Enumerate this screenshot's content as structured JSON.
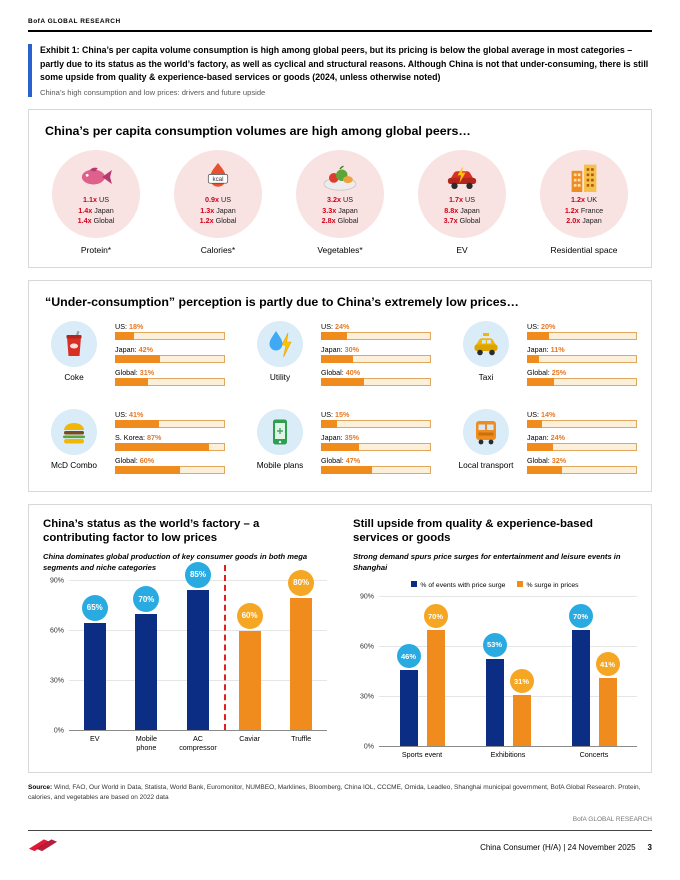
{
  "brand": {
    "top": "BofA GLOBAL RESEARCH",
    "bottom": "BofA GLOBAL RESEARCH"
  },
  "exhibit": {
    "title": "Exhibit 1: China’s per capita volume consumption is high among global peers, but its pricing is below the global average in most categories – partly due to its status as the world’s factory, as well as cyclical and structural reasons. Although China is not that under-consuming, there is still some upside from quality & experience-based services or goods (2024, unless otherwise noted)",
    "subtitle": "China’s high consumption and low prices: drivers and future upside"
  },
  "volumes": {
    "title": "China’s per capita consumption volumes are high among global peers…",
    "items": [
      {
        "icon": "fish-icon",
        "label": "Protein*",
        "stats": [
          {
            "value": "1.1x",
            "country": "US"
          },
          {
            "value": "1.4x",
            "country": "Japan"
          },
          {
            "value": "1.4x",
            "country": "Global"
          }
        ]
      },
      {
        "icon": "kcal-flame-icon",
        "icon_text": "kcal",
        "label": "Calories*",
        "stats": [
          {
            "value": "0.9x",
            "country": "US"
          },
          {
            "value": "1.3x",
            "country": "Japan"
          },
          {
            "value": "1.2x",
            "country": "Global"
          }
        ]
      },
      {
        "icon": "vegetables-plate-icon",
        "label": "Vegetables*",
        "stats": [
          {
            "value": "3.2x",
            "country": "US"
          },
          {
            "value": "3.3x",
            "country": "Japan"
          },
          {
            "value": "2.8x",
            "country": "Global"
          }
        ]
      },
      {
        "icon": "ev-car-icon",
        "label": "EV",
        "stats": [
          {
            "value": "1.7x",
            "country": "US"
          },
          {
            "value": "8.8x",
            "country": "Japan"
          },
          {
            "value": "3.7x",
            "country": "Global"
          }
        ]
      },
      {
        "icon": "buildings-icon",
        "label": "Residential space",
        "stats": [
          {
            "value": "1.2x",
            "country": "UK"
          },
          {
            "value": "1.2x",
            "country": "France"
          },
          {
            "value": "2.0x",
            "country": "Japan"
          }
        ]
      }
    ]
  },
  "prices": {
    "title": "“Under-consumption” perception is partly due to China’s extremely low prices…",
    "items": [
      {
        "icon": "coke-cup-icon",
        "label": "Coke",
        "bars": [
          {
            "label": "US:",
            "pct": 18
          },
          {
            "label": "Japan:",
            "pct": 42
          },
          {
            "label": "Global:",
            "pct": 31
          }
        ]
      },
      {
        "icon": "water-electricity-icon",
        "label": "Utility",
        "bars": [
          {
            "label": "US:",
            "pct": 24
          },
          {
            "label": "Japan:",
            "pct": 30
          },
          {
            "label": "Global:",
            "pct": 40
          }
        ]
      },
      {
        "icon": "taxi-icon",
        "label": "Taxi",
        "bars": [
          {
            "label": "US:",
            "pct": 20
          },
          {
            "label": "Japan:",
            "pct": 11
          },
          {
            "label": "Global:",
            "pct": 25
          }
        ]
      },
      {
        "icon": "burger-icon",
        "label": "McD Combo",
        "bars": [
          {
            "label": "US:",
            "pct": 41
          },
          {
            "label": "S. Korea:",
            "pct": 87
          },
          {
            "label": "Global:",
            "pct": 60
          }
        ]
      },
      {
        "icon": "mobile-phone-icon",
        "label": "Mobile plans",
        "bars": [
          {
            "label": "US:",
            "pct": 15
          },
          {
            "label": "Japan:",
            "pct": 35
          },
          {
            "label": "Global:",
            "pct": 47
          }
        ]
      },
      {
        "icon": "bus-icon",
        "label": "Local transport",
        "bars": [
          {
            "label": "US:",
            "pct": 14
          },
          {
            "label": "Japan:",
            "pct": 24
          },
          {
            "label": "Global:",
            "pct": 32
          }
        ]
      }
    ]
  },
  "chart_data": [
    {
      "type": "bar",
      "title": "China’s status as the world’s factory – a contributing factor to low prices",
      "subtitle": "China dominates global production of key consumer goods in both mega segments and niche categories",
      "categories": [
        "EV",
        "Mobile phone",
        "AC compressor",
        "Caviar",
        "Truffle"
      ],
      "values": [
        65,
        70,
        85,
        60,
        80
      ],
      "bar_colors": [
        "navy",
        "navy",
        "navy",
        "orange",
        "orange"
      ],
      "separator_after_index": 2,
      "ylim": [
        0,
        90
      ],
      "yticks": [
        "0%",
        "30%",
        "60%",
        "90%"
      ],
      "grid": true,
      "legend_position": "none"
    },
    {
      "type": "grouped-bar",
      "title": "Still upside from quality & experience-based services or goods",
      "subtitle": "Strong demand spurs price surges for entertainment and leisure events in Shanghai",
      "categories": [
        "Sports event",
        "Exhibitions",
        "Concerts"
      ],
      "series": [
        {
          "name": "% of events with price surge",
          "color": "navy",
          "values": [
            46,
            53,
            70
          ]
        },
        {
          "name": "% surge in prices",
          "color": "orange",
          "values": [
            70,
            31,
            41
          ]
        }
      ],
      "ylim": [
        0,
        90
      ],
      "yticks": [
        "0%",
        "30%",
        "60%",
        "90%"
      ],
      "grid": true,
      "legend_position": "top"
    }
  ],
  "colors": {
    "navy_bar": "#0C2D84",
    "orange_bar": "#F08C1E",
    "bubble_blue": "#29ABE2",
    "bubble_orange": "#F5A623",
    "stat_red": "#D0021B",
    "price_pct_orange": "#E87722",
    "accent_blue": "#2962CC",
    "separator_red": "#E02020"
  },
  "source": {
    "label": "Source:",
    "text": " Wind, FAO, Our World in Data, Statista, World Bank, Euromonitor, NUMBEO, Marklines, Bloomberg, China IOL, CCCME, Omida, Leadleo, Shanghai municipal government, BofA Global Research. Protein, calories, and vegetables are based on 2022 data"
  },
  "footer": {
    "doc": "China Consumer (H/A) | 24 November 2025",
    "page": "3"
  }
}
